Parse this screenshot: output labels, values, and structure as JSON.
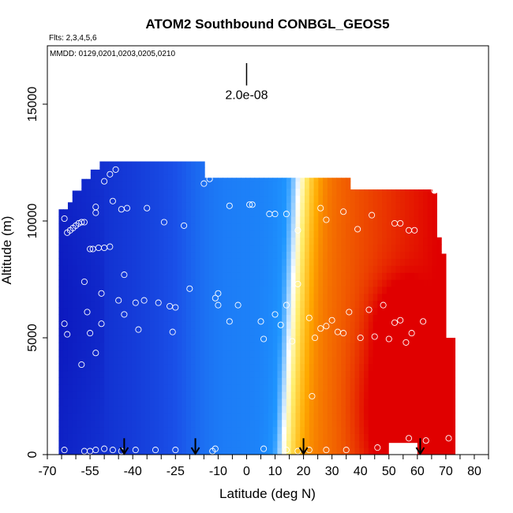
{
  "chart_data": {
    "type": "heatmap",
    "title": "ATOM2 Southbound CONBGL_GEOS5",
    "annotations": {
      "flights": "Flts: 2,3,4,5,6",
      "dates": "MMDD: 0129,0201,0203,0205,0210"
    },
    "xlabel": "Latitude (deg N)",
    "ylabel": "Altitude (m)",
    "xlim": [
      -70,
      85
    ],
    "ylim": [
      0,
      17500
    ],
    "x_ticks": [
      -70,
      -55,
      -40,
      -25,
      -10,
      0,
      10,
      20,
      30,
      40,
      50,
      60,
      70,
      80
    ],
    "x_tick_labels": [
      "-70",
      "-55",
      "-40",
      "-25",
      "-10",
      "0",
      "10",
      "20",
      "30",
      "40",
      "50",
      "60",
      "70",
      "80"
    ],
    "y_ticks": [
      0,
      5000,
      10000,
      15000
    ],
    "y_tick_labels": [
      "0",
      "5000",
      "10000",
      "15000"
    ],
    "scale_bar": {
      "label": "2.0e-08",
      "lat": 0,
      "alt_top": 17500,
      "alt_bottom": 15800
    },
    "arrows_lat": [
      -43,
      -18,
      20,
      61
    ],
    "colors": {
      "low": "#0a10b8",
      "mid": "#ffffff",
      "high": "#e00000",
      "points": "#ffffff"
    },
    "points": [
      [
        -64,
        10100
      ],
      [
        -63,
        9500
      ],
      [
        -62,
        9600
      ],
      [
        -61,
        9700
      ],
      [
        -60,
        9800
      ],
      [
        -59,
        9900
      ],
      [
        -58,
        9950
      ],
      [
        -57,
        9950
      ],
      [
        -53,
        10600
      ],
      [
        -53,
        10350
      ],
      [
        -50,
        11700
      ],
      [
        -48,
        12000
      ],
      [
        -46,
        12200
      ],
      [
        -47,
        10850
      ],
      [
        -44,
        10500
      ],
      [
        -42,
        10550
      ],
      [
        -35,
        10550
      ],
      [
        -29,
        9950
      ],
      [
        -22,
        9800
      ],
      [
        -15,
        11600
      ],
      [
        -13,
        11800
      ],
      [
        -11,
        12000
      ],
      [
        -10,
        12000
      ],
      [
        -6,
        10650
      ],
      [
        1,
        10700
      ],
      [
        2,
        10700
      ],
      [
        8,
        10300
      ],
      [
        10,
        10300
      ],
      [
        14,
        10300
      ],
      [
        18,
        9600
      ],
      [
        26,
        10550
      ],
      [
        28,
        10050
      ],
      [
        34,
        10400
      ],
      [
        39,
        9650
      ],
      [
        44,
        10250
      ],
      [
        52,
        9900
      ],
      [
        54,
        9900
      ],
      [
        57,
        9600
      ],
      [
        59,
        9600
      ],
      [
        66,
        11300
      ],
      [
        68,
        11250
      ],
      [
        -55,
        8800
      ],
      [
        -54,
        8800
      ],
      [
        -52,
        8850
      ],
      [
        -50,
        8850
      ],
      [
        -48,
        8900
      ],
      [
        -43,
        7700
      ],
      [
        -57,
        7400
      ],
      [
        -51,
        6900
      ],
      [
        -45,
        6600
      ],
      [
        -43,
        6000
      ],
      [
        -39,
        6500
      ],
      [
        -36,
        6600
      ],
      [
        -31,
        6500
      ],
      [
        -27,
        6350
      ],
      [
        -25,
        6300
      ],
      [
        -20,
        7100
      ],
      [
        -11,
        6700
      ],
      [
        -10,
        6900
      ],
      [
        -10,
        6400
      ],
      [
        -6,
        5700
      ],
      [
        -3,
        6400
      ],
      [
        5,
        5700
      ],
      [
        6,
        4950
      ],
      [
        10,
        6000
      ],
      [
        12,
        5550
      ],
      [
        14,
        6400
      ],
      [
        16,
        4850
      ],
      [
        18,
        7300
      ],
      [
        22,
        5850
      ],
      [
        24,
        5000
      ],
      [
        26,
        5400
      ],
      [
        28,
        5500
      ],
      [
        30,
        5750
      ],
      [
        32,
        5250
      ],
      [
        34,
        5200
      ],
      [
        36,
        6100
      ],
      [
        40,
        5000
      ],
      [
        43,
        6200
      ],
      [
        45,
        5050
      ],
      [
        48,
        6400
      ],
      [
        50,
        4950
      ],
      [
        52,
        5650
      ],
      [
        54,
        5750
      ],
      [
        56,
        4800
      ],
      [
        58,
        5200
      ],
      [
        62,
        5700
      ],
      [
        -56,
        6100
      ],
      [
        -55,
        5200
      ],
      [
        -53,
        4350
      ],
      [
        -51,
        5600
      ],
      [
        -38,
        5350
      ],
      [
        -26,
        5250
      ],
      [
        -58,
        3850
      ],
      [
        -64,
        5600
      ],
      [
        -63,
        5150
      ],
      [
        -64,
        200
      ],
      [
        -57,
        150
      ],
      [
        -55,
        150
      ],
      [
        -53,
        200
      ],
      [
        -50,
        250
      ],
      [
        -47,
        200
      ],
      [
        -44,
        150
      ],
      [
        -39,
        200
      ],
      [
        -32,
        200
      ],
      [
        -25,
        200
      ],
      [
        -12,
        150
      ],
      [
        -11,
        250
      ],
      [
        6,
        250
      ],
      [
        14,
        200
      ],
      [
        18,
        150
      ],
      [
        22,
        200
      ],
      [
        28,
        200
      ],
      [
        35,
        200
      ],
      [
        46,
        300
      ],
      [
        57,
        700
      ],
      [
        63,
        600
      ],
      [
        71,
        700
      ],
      [
        23,
        2500
      ]
    ]
  }
}
